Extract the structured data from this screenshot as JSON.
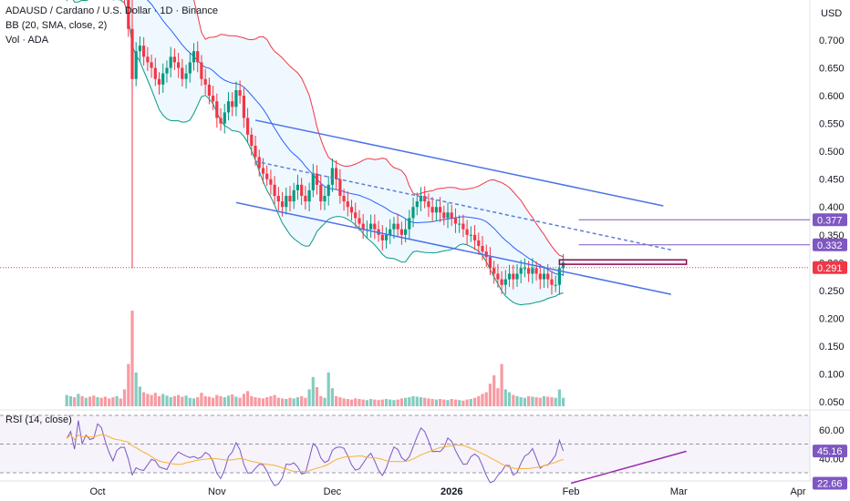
{
  "legend": {
    "symbol": "ADAUSD",
    "name": "Cardano / U.S. Dollar",
    "interval": "1D",
    "exchange": "Binance",
    "bb": "BB (20, SMA, close, 2)",
    "vol": "Vol · ADA",
    "rsi": "RSI (14, close)"
  },
  "price_axis": {
    "currency": "USD",
    "ticks": [
      "0.700",
      "0.650",
      "0.600",
      "0.550",
      "0.500",
      "0.450",
      "0.400",
      "0.350",
      "0.300",
      "0.250",
      "0.200",
      "0.150",
      "0.100",
      "0.050"
    ],
    "tick_values": [
      0.7,
      0.65,
      0.6,
      0.55,
      0.5,
      0.45,
      0.4,
      0.35,
      0.3,
      0.25,
      0.2,
      0.15,
      0.1,
      0.05
    ],
    "labels": [
      {
        "text": "0.377",
        "value": 0.377,
        "color": "#7e57c2"
      },
      {
        "text": "0.332",
        "value": 0.332,
        "color": "#7e57c2"
      },
      {
        "text": "0.291",
        "value": 0.291,
        "color": "#f23645"
      }
    ]
  },
  "rsi_axis": {
    "ticks": [
      "60.00",
      "40.00"
    ],
    "tick_values": [
      60,
      40
    ],
    "labels": [
      {
        "text": "45.16",
        "value": 45.16,
        "color": "#7e57c2"
      },
      {
        "text": "22.66",
        "value": 22.66,
        "color": "#7e57c2"
      }
    ]
  },
  "time_axis": {
    "labels": [
      {
        "text": "Oct",
        "day": 0,
        "bold": false
      },
      {
        "text": "Nov",
        "day": 31,
        "bold": false
      },
      {
        "text": "Dec",
        "day": 61,
        "bold": false
      },
      {
        "text": "2026",
        "day": 92,
        "bold": true
      },
      {
        "text": "Feb",
        "day": 123,
        "bold": false
      },
      {
        "text": "Mar",
        "day": 151,
        "bold": false
      },
      {
        "text": "Apr",
        "day": 182,
        "bold": false
      }
    ]
  },
  "chart_data": {
    "type": "candlestick",
    "title": "ADAUSD · Cardano / U.S. Dollar · 1D · Binance",
    "ylim": [
      0.03,
      0.77
    ],
    "x_range": [
      "2025-10-01",
      "2026-04-05"
    ],
    "candles": {
      "start": "2025-09-23",
      "close": [
        0.8,
        0.82,
        0.79,
        0.83,
        0.81,
        0.84,
        0.83,
        0.82,
        0.84,
        0.83,
        0.81,
        0.8,
        0.79,
        0.81,
        0.8,
        0.78,
        0.72,
        0.63,
        0.68,
        0.69,
        0.67,
        0.66,
        0.65,
        0.63,
        0.62,
        0.64,
        0.65,
        0.67,
        0.66,
        0.65,
        0.63,
        0.64,
        0.66,
        0.68,
        0.66,
        0.63,
        0.62,
        0.6,
        0.59,
        0.56,
        0.55,
        0.57,
        0.59,
        0.58,
        0.61,
        0.6,
        0.56,
        0.53,
        0.51,
        0.49,
        0.47,
        0.46,
        0.45,
        0.44,
        0.42,
        0.41,
        0.4,
        0.42,
        0.41,
        0.43,
        0.44,
        0.42,
        0.41,
        0.43,
        0.46,
        0.44,
        0.41,
        0.42,
        0.44,
        0.47,
        0.45,
        0.42,
        0.41,
        0.4,
        0.39,
        0.38,
        0.37,
        0.36,
        0.36,
        0.37,
        0.36,
        0.35,
        0.34,
        0.35,
        0.36,
        0.37,
        0.36,
        0.35,
        0.36,
        0.38,
        0.4,
        0.41,
        0.42,
        0.41,
        0.4,
        0.39,
        0.4,
        0.39,
        0.38,
        0.39,
        0.38,
        0.37,
        0.37,
        0.36,
        0.35,
        0.35,
        0.34,
        0.33,
        0.32,
        0.31,
        0.29,
        0.28,
        0.27,
        0.26,
        0.27,
        0.28,
        0.27,
        0.28,
        0.29,
        0.29,
        0.28,
        0.29,
        0.28,
        0.27,
        0.28,
        0.27,
        0.26,
        0.26,
        0.29,
        0.3
      ],
      "open_gap": 0.012,
      "volume": [
        0.02,
        0.018,
        0.016,
        0.022,
        0.018,
        0.015,
        0.017,
        0.019,
        0.016,
        0.015,
        0.017,
        0.014,
        0.016,
        0.018,
        0.014,
        0.03,
        0.075,
        0.17,
        0.06,
        0.035,
        0.025,
        0.022,
        0.02,
        0.024,
        0.018,
        0.022,
        0.019,
        0.016,
        0.018,
        0.02,
        0.017,
        0.019,
        0.015,
        0.014,
        0.016,
        0.024,
        0.018,
        0.017,
        0.015,
        0.02,
        0.018,
        0.016,
        0.019,
        0.021,
        0.017,
        0.015,
        0.022,
        0.027,
        0.018,
        0.016,
        0.015,
        0.014,
        0.016,
        0.018,
        0.02,
        0.015,
        0.014,
        0.013,
        0.015,
        0.014,
        0.016,
        0.018,
        0.015,
        0.03,
        0.052,
        0.034,
        0.018,
        0.015,
        0.06,
        0.032,
        0.018,
        0.016,
        0.014,
        0.013,
        0.012,
        0.014,
        0.013,
        0.012,
        0.011,
        0.013,
        0.012,
        0.011,
        0.012,
        0.013,
        0.012,
        0.011,
        0.012,
        0.014,
        0.015,
        0.016,
        0.018,
        0.017,
        0.016,
        0.015,
        0.014,
        0.013,
        0.012,
        0.013,
        0.012,
        0.011,
        0.013,
        0.012,
        0.011,
        0.01,
        0.012,
        0.013,
        0.015,
        0.018,
        0.022,
        0.025,
        0.04,
        0.055,
        0.032,
        0.075,
        0.03,
        0.025,
        0.02,
        0.018,
        0.016,
        0.015,
        0.018,
        0.017,
        0.016,
        0.015,
        0.018,
        0.017,
        0.016,
        0.015,
        0.03,
        0.015
      ]
    },
    "trend_lines": [
      {
        "name": "upper channel",
        "points": [
          [
            "2025-11-11",
            0.556
          ],
          [
            "2026-02-25",
            0.402
          ]
        ],
        "color": "#4a73e8",
        "dashed": false
      },
      {
        "name": "lower channel",
        "points": [
          [
            "2025-11-06",
            0.408
          ],
          [
            "2026-02-27",
            0.243
          ]
        ],
        "color": "#4a73e8",
        "dashed": false
      },
      {
        "name": "mid channel",
        "points": [
          [
            "2025-11-11",
            0.482
          ],
          [
            "2026-02-27",
            0.323
          ]
        ],
        "color": "#5b7fd9",
        "dashed": true
      },
      {
        "name": "rsi trend",
        "points": [
          [
            "2026-02-01",
            22.7
          ],
          [
            "2026-03-03",
            45.0
          ]
        ],
        "color": "#9c27b0",
        "dashed": false,
        "pane": "rsi"
      }
    ],
    "horizontal_levels": [
      {
        "value": 0.377,
        "color": "#7e57c2",
        "from": "2026-02-03"
      },
      {
        "value": 0.332,
        "color": "#7e57c2",
        "from": "2026-02-03"
      },
      {
        "value": 0.291,
        "color": "#f23645",
        "dotted": true
      }
    ],
    "resistance_box": {
      "from": "2026-01-29",
      "to": "2026-03-03",
      "top": 0.305,
      "bottom": 0.297,
      "color": "#880e4f"
    },
    "rsi": {
      "period": 14,
      "upper": 70,
      "lower": 30,
      "mid": 50,
      "latest": 45.16,
      "low": 22.66
    }
  }
}
